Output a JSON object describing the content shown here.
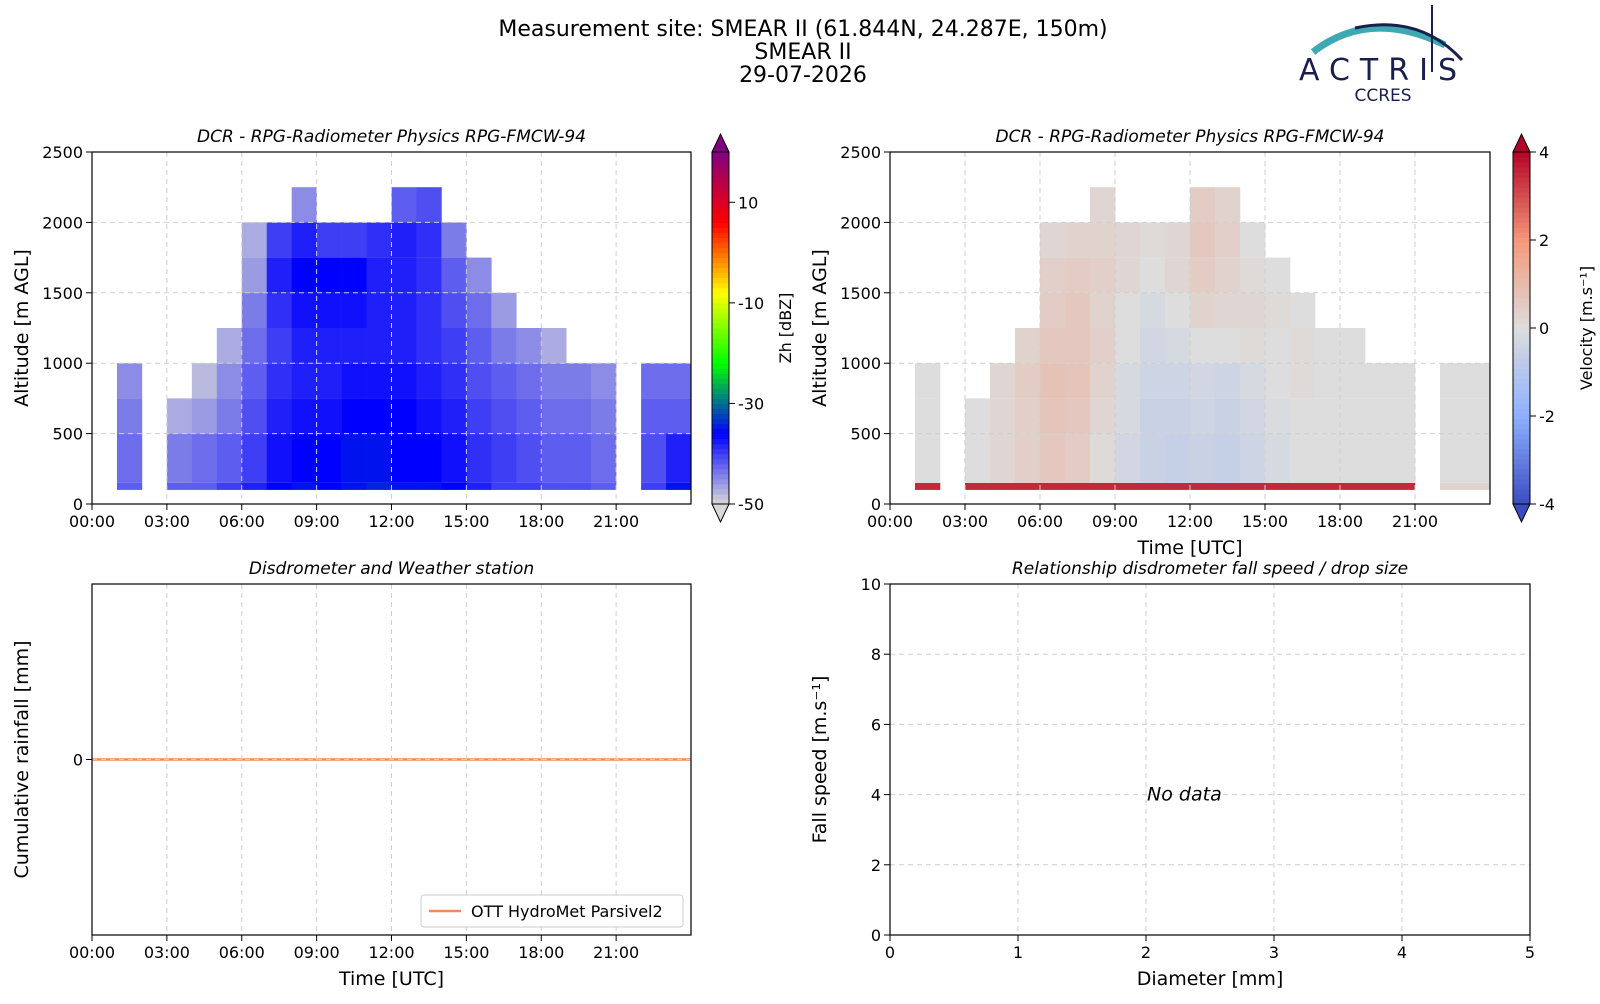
{
  "header": {
    "title": "Measurement site: SMEAR II (61.844N, 24.287E, 150m)",
    "subtitle": "SMEAR II",
    "date": "29-07-2026"
  },
  "logo": {
    "name": "ACTRIS",
    "sub": "CCRES"
  },
  "chart_data": [
    {
      "type": "heatmap",
      "title": "DCR - RPG-Radiometer Physics RPG-FMCW-94",
      "ylabel": "Altitude [m AGL]",
      "xlim": [
        0,
        24
      ],
      "xticks": [
        {
          "value": 0,
          "label": "00:00"
        },
        {
          "value": 3,
          "label": "03:00"
        },
        {
          "value": 6,
          "label": "06:00"
        },
        {
          "value": 9,
          "label": "09:00"
        },
        {
          "value": 12,
          "label": "12:00"
        },
        {
          "value": 15,
          "label": "15:00"
        },
        {
          "value": 18,
          "label": "18:00"
        },
        {
          "value": 21,
          "label": "21:00"
        }
      ],
      "ylim": [
        0,
        2500
      ],
      "yticks": [
        0,
        500,
        1000,
        1500,
        2000,
        2500
      ],
      "grid": true,
      "x_bins": [
        0,
        1,
        2,
        3,
        4,
        5,
        6,
        7,
        8,
        9,
        10,
        11,
        12,
        13,
        14,
        15,
        16,
        17,
        18,
        19,
        20,
        21,
        22,
        23,
        24
      ],
      "y_bins": [
        100,
        150,
        500,
        750,
        1000,
        1250,
        1500,
        1750,
        2000,
        2250
      ],
      "z": [
        [
          null,
          -42,
          null,
          -42,
          -42,
          -40,
          -38,
          -36,
          -35,
          -36,
          -35,
          -34,
          -35,
          -35,
          -36,
          -38,
          -40,
          -40,
          -41,
          -41,
          -42,
          null,
          -40,
          -35
        ],
        [
          null,
          -43,
          null,
          -44,
          -43,
          -42,
          -40,
          -37,
          -36,
          -36,
          -35,
          -35,
          -36,
          -36,
          -37,
          -39,
          -40,
          -41,
          -42,
          -42,
          -43,
          null,
          -41,
          -38
        ],
        [
          null,
          -44,
          null,
          -47,
          -46,
          -44,
          -41,
          -38,
          -37,
          -37,
          -36,
          -36,
          -36,
          -37,
          -38,
          -40,
          -41,
          -42,
          -43,
          -43,
          -44,
          null,
          -42,
          -42
        ],
        [
          null,
          -45,
          null,
          null,
          -48,
          -45,
          -42,
          -39,
          -38,
          -38,
          -37,
          -37,
          -37,
          -38,
          -39,
          -41,
          -42,
          -43,
          -44,
          -44,
          -45,
          null,
          -43,
          -43
        ],
        [
          null,
          null,
          null,
          null,
          null,
          -47,
          -43,
          -40,
          -38,
          -38,
          -38,
          -38,
          -38,
          -39,
          -40,
          -42,
          -44,
          -45,
          -47,
          null,
          null,
          null,
          null,
          null
        ],
        [
          null,
          null,
          null,
          null,
          null,
          null,
          -44,
          -39,
          -37,
          -37,
          -37,
          -38,
          -38,
          -39,
          -41,
          -43,
          -46,
          null,
          null,
          null,
          null,
          null,
          null,
          null
        ],
        [
          null,
          null,
          null,
          null,
          null,
          null,
          -46,
          -38,
          -36,
          -36,
          -36,
          -38,
          -38,
          -39,
          -42,
          -45,
          null,
          null,
          null,
          null,
          null,
          null,
          null,
          null
        ],
        [
          null,
          null,
          null,
          null,
          null,
          null,
          -47,
          -40,
          -38,
          -40,
          -40,
          -39,
          -38,
          -39,
          -44,
          null,
          null,
          null,
          null,
          null,
          null,
          null,
          null,
          null
        ],
        [
          null,
          null,
          null,
          null,
          null,
          null,
          null,
          null,
          -45,
          null,
          null,
          null,
          -42,
          -41,
          null,
          null,
          null,
          null,
          null,
          null,
          null,
          null,
          null,
          null
        ]
      ],
      "colorbar": {
        "label": "Zh [dBZ]",
        "lim": [
          -50,
          20
        ],
        "ticks": [
          -50,
          -30,
          -10,
          10
        ],
        "colormap": [
          "#d9d9d9",
          "#0000ff",
          "#00ff00",
          "#ffff00",
          "#ff0000",
          "#800080"
        ]
      }
    },
    {
      "type": "heatmap",
      "title": "DCR - RPG-Radiometer Physics RPG-FMCW-94",
      "ylabel": "Altitude [m AGL]",
      "xlabel": "Time [UTC]",
      "xlim": [
        0,
        24
      ],
      "xticks": [
        {
          "value": 0,
          "label": "00:00"
        },
        {
          "value": 3,
          "label": "03:00"
        },
        {
          "value": 6,
          "label": "06:00"
        },
        {
          "value": 9,
          "label": "09:00"
        },
        {
          "value": 12,
          "label": "12:00"
        },
        {
          "value": 15,
          "label": "15:00"
        },
        {
          "value": 18,
          "label": "18:00"
        },
        {
          "value": 21,
          "label": "21:00"
        }
      ],
      "ylim": [
        0,
        2500
      ],
      "yticks": [
        0,
        500,
        1000,
        1500,
        2000,
        2500
      ],
      "grid": true,
      "x_bins": [
        0,
        1,
        2,
        3,
        4,
        5,
        6,
        7,
        8,
        9,
        10,
        11,
        12,
        13,
        14,
        15,
        16,
        17,
        18,
        19,
        20,
        21,
        22,
        23,
        24
      ],
      "y_bins": [
        100,
        150,
        500,
        750,
        1000,
        1250,
        1500,
        1750,
        2000,
        2250
      ],
      "z": [
        [
          null,
          3.5,
          null,
          3.5,
          3.5,
          3.5,
          3.5,
          3.5,
          3.5,
          3.5,
          3.5,
          3.5,
          3.5,
          3.5,
          3.5,
          3.5,
          3.5,
          3.5,
          3.5,
          3.5,
          3.5,
          null,
          0.3,
          0.3
        ],
        [
          null,
          0,
          null,
          0,
          0.2,
          0.4,
          0.6,
          0.5,
          0.1,
          -0.3,
          -0.5,
          -0.6,
          -0.5,
          -0.6,
          -0.4,
          -0.2,
          0,
          0,
          0,
          0,
          0,
          null,
          0,
          0
        ],
        [
          null,
          0,
          null,
          0,
          0.2,
          0.4,
          0.7,
          0.6,
          0.2,
          -0.2,
          -0.5,
          -0.5,
          -0.4,
          -0.5,
          -0.3,
          -0.1,
          0,
          0,
          0,
          0,
          0,
          null,
          0,
          0
        ],
        [
          null,
          0,
          null,
          null,
          0.2,
          0.5,
          0.8,
          0.7,
          0.3,
          -0.2,
          -0.4,
          -0.4,
          -0.3,
          -0.4,
          -0.2,
          0,
          0.1,
          0,
          0,
          0,
          0,
          null,
          0,
          0
        ],
        [
          null,
          null,
          null,
          null,
          null,
          0.3,
          0.6,
          0.6,
          0.4,
          0,
          -0.3,
          -0.2,
          0,
          0,
          0.1,
          0,
          0.1,
          0,
          0,
          null,
          null,
          null,
          null,
          null
        ],
        [
          null,
          null,
          null,
          null,
          null,
          null,
          0.5,
          0.6,
          0.3,
          0,
          -0.2,
          0,
          0.3,
          0.2,
          0.2,
          0.1,
          0,
          null,
          null,
          null,
          null,
          null,
          null,
          null
        ],
        [
          null,
          null,
          null,
          null,
          null,
          null,
          0.4,
          0.5,
          0.4,
          0.2,
          0,
          0.2,
          0.5,
          0.3,
          0.1,
          0,
          null,
          null,
          null,
          null,
          null,
          null,
          null,
          null
        ],
        [
          null,
          null,
          null,
          null,
          null,
          null,
          0.2,
          0.3,
          0.3,
          0.2,
          0.1,
          0.2,
          0.6,
          0.4,
          0,
          null,
          null,
          null,
          null,
          null,
          null,
          null,
          null,
          null
        ],
        [
          null,
          null,
          null,
          null,
          null,
          null,
          null,
          null,
          0.2,
          null,
          null,
          null,
          0.5,
          0.3,
          null,
          null,
          null,
          null,
          null,
          null,
          null,
          null,
          null,
          null
        ]
      ],
      "colorbar": {
        "label": "Velocity [m.s⁻¹]",
        "lim": [
          -4,
          4
        ],
        "ticks": [
          -4,
          -2,
          0,
          2,
          4
        ],
        "colormap": [
          "#3b4cc0",
          "#8db0fe",
          "#dddddd",
          "#f4987a",
          "#b40426"
        ]
      }
    },
    {
      "type": "line",
      "title": "Disdrometer and Weather station",
      "ylabel": "Cumulative rainfall [mm]",
      "xlabel": "Time [UTC]",
      "xlim": [
        0,
        24
      ],
      "xticks": [
        {
          "value": 0,
          "label": "00:00"
        },
        {
          "value": 3,
          "label": "03:00"
        },
        {
          "value": 6,
          "label": "06:00"
        },
        {
          "value": 9,
          "label": "09:00"
        },
        {
          "value": 12,
          "label": "12:00"
        },
        {
          "value": 15,
          "label": "15:00"
        },
        {
          "value": 18,
          "label": "18:00"
        },
        {
          "value": 21,
          "label": "21:00"
        }
      ],
      "ylim": [
        -1,
        1
      ],
      "yticks": [
        0
      ],
      "grid": true,
      "legend": "lower right",
      "x": [
        0,
        24
      ],
      "series": [
        {
          "name": "OTT HydroMet Parsivel2",
          "color": "#f08a5d",
          "values": [
            0,
            0
          ]
        }
      ]
    },
    {
      "type": "scatter",
      "title": "Relationship disdrometer fall speed / drop size",
      "ylabel": "Fall speed [m.s⁻¹]",
      "xlabel": "Diameter [mm]",
      "xlim": [
        0,
        5
      ],
      "xticks": [
        0,
        1,
        2,
        3,
        4,
        5
      ],
      "ylim": [
        0,
        10
      ],
      "yticks": [
        0,
        2,
        4,
        6,
        8,
        10
      ],
      "grid": true,
      "annotation": "No data"
    }
  ]
}
